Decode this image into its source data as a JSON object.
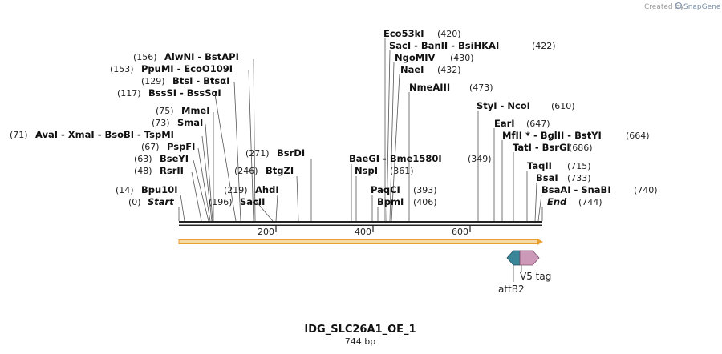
{
  "branding": {
    "created_by": "Created by",
    "app_name": "SnapGene"
  },
  "plasmid": {
    "name": "IDG_SLC26A1_OE_1",
    "length_label": "744 bp",
    "length": 744
  },
  "axis": {
    "ticks": [
      200,
      400,
      600
    ]
  },
  "colors": {
    "backbone": "#222222",
    "orf_line": "#e8a030",
    "orf_fill": "#f7d9a6",
    "attB2": "#3a8598",
    "v5": "#cc9ab8"
  },
  "sites": [
    {
      "pos": "(0)",
      "label": "Start",
      "italic": true
    },
    {
      "pos": "(14)",
      "label": "Bpu10I"
    },
    {
      "pos": "(48)",
      "label": "RsrII"
    },
    {
      "pos": "(63)",
      "label": "BseYI"
    },
    {
      "pos": "(67)",
      "label": "PspFI"
    },
    {
      "pos": "(71)",
      "label": "AvaI  - XmaI  - BsoBI  - TspMI"
    },
    {
      "pos": "(73)",
      "label": "SmaI"
    },
    {
      "pos": "(75)",
      "label": "MmeI"
    },
    {
      "pos": "(117)",
      "label": "BssSI  - BssSαI"
    },
    {
      "pos": "(129)",
      "label": "BtsI  - BtsαI"
    },
    {
      "pos": "(153)",
      "label": "PpuMI  - EcoO109I"
    },
    {
      "pos": "(156)",
      "label": "AlwNI   - BstAPI"
    },
    {
      "pos": "(196)",
      "label": "SacII"
    },
    {
      "pos": "(219)",
      "label": "AhdI"
    },
    {
      "pos": "(246)",
      "label": "BtgZI"
    },
    {
      "pos": "(271)",
      "label": "BsrDI"
    },
    {
      "pos": "(349)",
      "label": "BaeGI   - Bme1580I"
    },
    {
      "pos": "(361)",
      "label": "NspI"
    },
    {
      "pos": "(393)",
      "label": "PaqCI"
    },
    {
      "pos": "(406)",
      "label": "BpmI"
    },
    {
      "pos": "(420)",
      "label": "Eco53kI"
    },
    {
      "pos": "(422)",
      "label": "SacI  - BanII  - BsiHKAI"
    },
    {
      "pos": "(430)",
      "label": "NgoMIV"
    },
    {
      "pos": "(432)",
      "label": "NaeI"
    },
    {
      "pos": "(473)",
      "label": "NmeAIII"
    },
    {
      "pos": "(610)",
      "label": "StyI  - NcoI"
    },
    {
      "pos": "(647)",
      "label": "EarI"
    },
    {
      "pos": "(664)",
      "label": "MfII * - BglII  - BstYI"
    },
    {
      "pos": "(686)",
      "label": "TatI  - BsrGI"
    },
    {
      "pos": "(715)",
      "label": "TaqII"
    },
    {
      "pos": "(733)",
      "label": "BsaI"
    },
    {
      "pos": "(740)",
      "label": "BsaAI  - SnaBI"
    },
    {
      "pos": "(744)",
      "label": "End",
      "italic": true
    }
  ],
  "features": [
    {
      "name": "attB2",
      "label": "attB2"
    },
    {
      "name": "V5",
      "label": "V5 tag"
    }
  ]
}
